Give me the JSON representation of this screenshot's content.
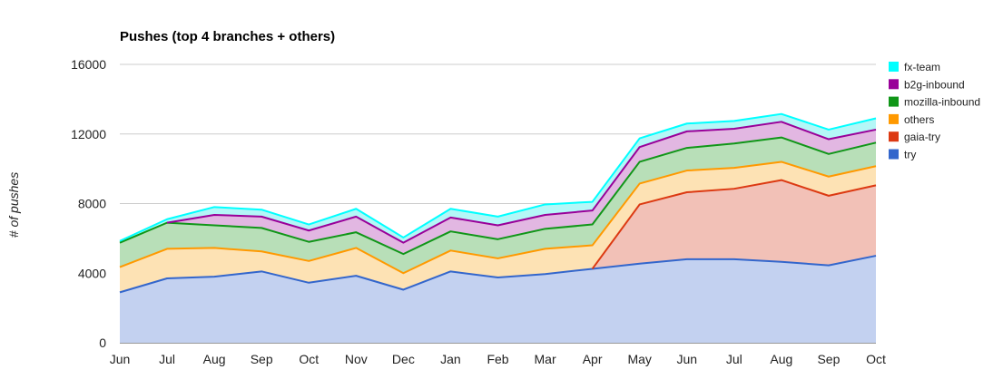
{
  "chart_data": {
    "type": "area",
    "stacked": true,
    "title": "Pushes (top 4 branches + others)",
    "xlabel": "",
    "ylabel": "# of pushes",
    "ylim": [
      0,
      16000
    ],
    "yticks": [
      "0",
      "4000",
      "8000",
      "12000",
      "16000"
    ],
    "grid": true,
    "legend_position": "right",
    "categories": [
      "Jun",
      "Jul",
      "Aug",
      "Sep",
      "Oct",
      "Nov",
      "Dec",
      "Jan",
      "Feb",
      "Mar",
      "Apr",
      "May",
      "Jun",
      "Jul",
      "Aug",
      "Sep",
      "Oct"
    ],
    "series": [
      {
        "name": "try",
        "color": "#3366cc",
        "fill": "#c3d1f0",
        "values": [
          2900,
          3700,
          3800,
          4100,
          3450,
          3850,
          3050,
          4100,
          3750,
          3950,
          4250,
          4550,
          4800,
          4800,
          4650,
          4450,
          5000
        ]
      },
      {
        "name": "gaia-try",
        "color": "#dc3912",
        "fill": "#f2c1b7",
        "values": [
          0,
          0,
          0,
          0,
          0,
          0,
          0,
          0,
          0,
          0,
          0,
          3400,
          3850,
          4050,
          4700,
          4000,
          4050
        ]
      },
      {
        "name": "others",
        "color": "#ff9900",
        "fill": "#fde2b4",
        "values": [
          1450,
          1700,
          1650,
          1150,
          1250,
          1600,
          950,
          1200,
          1100,
          1450,
          1350,
          1200,
          1250,
          1200,
          1050,
          1100,
          1100
        ]
      },
      {
        "name": "mozilla-inbound",
        "color": "#109618",
        "fill": "#b8dfb8",
        "values": [
          1400,
          1500,
          1300,
          1350,
          1100,
          900,
          1100,
          1100,
          1100,
          1150,
          1200,
          1250,
          1300,
          1400,
          1400,
          1300,
          1350
        ]
      },
      {
        "name": "b2g-inbound",
        "color": "#990099",
        "fill": "#e2b7e2",
        "values": [
          0,
          0,
          600,
          650,
          650,
          900,
          650,
          800,
          800,
          800,
          800,
          850,
          950,
          850,
          900,
          850,
          750
        ]
      },
      {
        "name": "fx-team",
        "color": "#00ffff",
        "fill": "#b4f7f7",
        "values": [
          100,
          200,
          450,
          400,
          350,
          450,
          300,
          500,
          500,
          600,
          500,
          500,
          450,
          450,
          450,
          550,
          650
        ]
      }
    ],
    "legend_order": [
      "fx-team",
      "b2g-inbound",
      "mozilla-inbound",
      "others",
      "gaia-try",
      "try"
    ]
  }
}
